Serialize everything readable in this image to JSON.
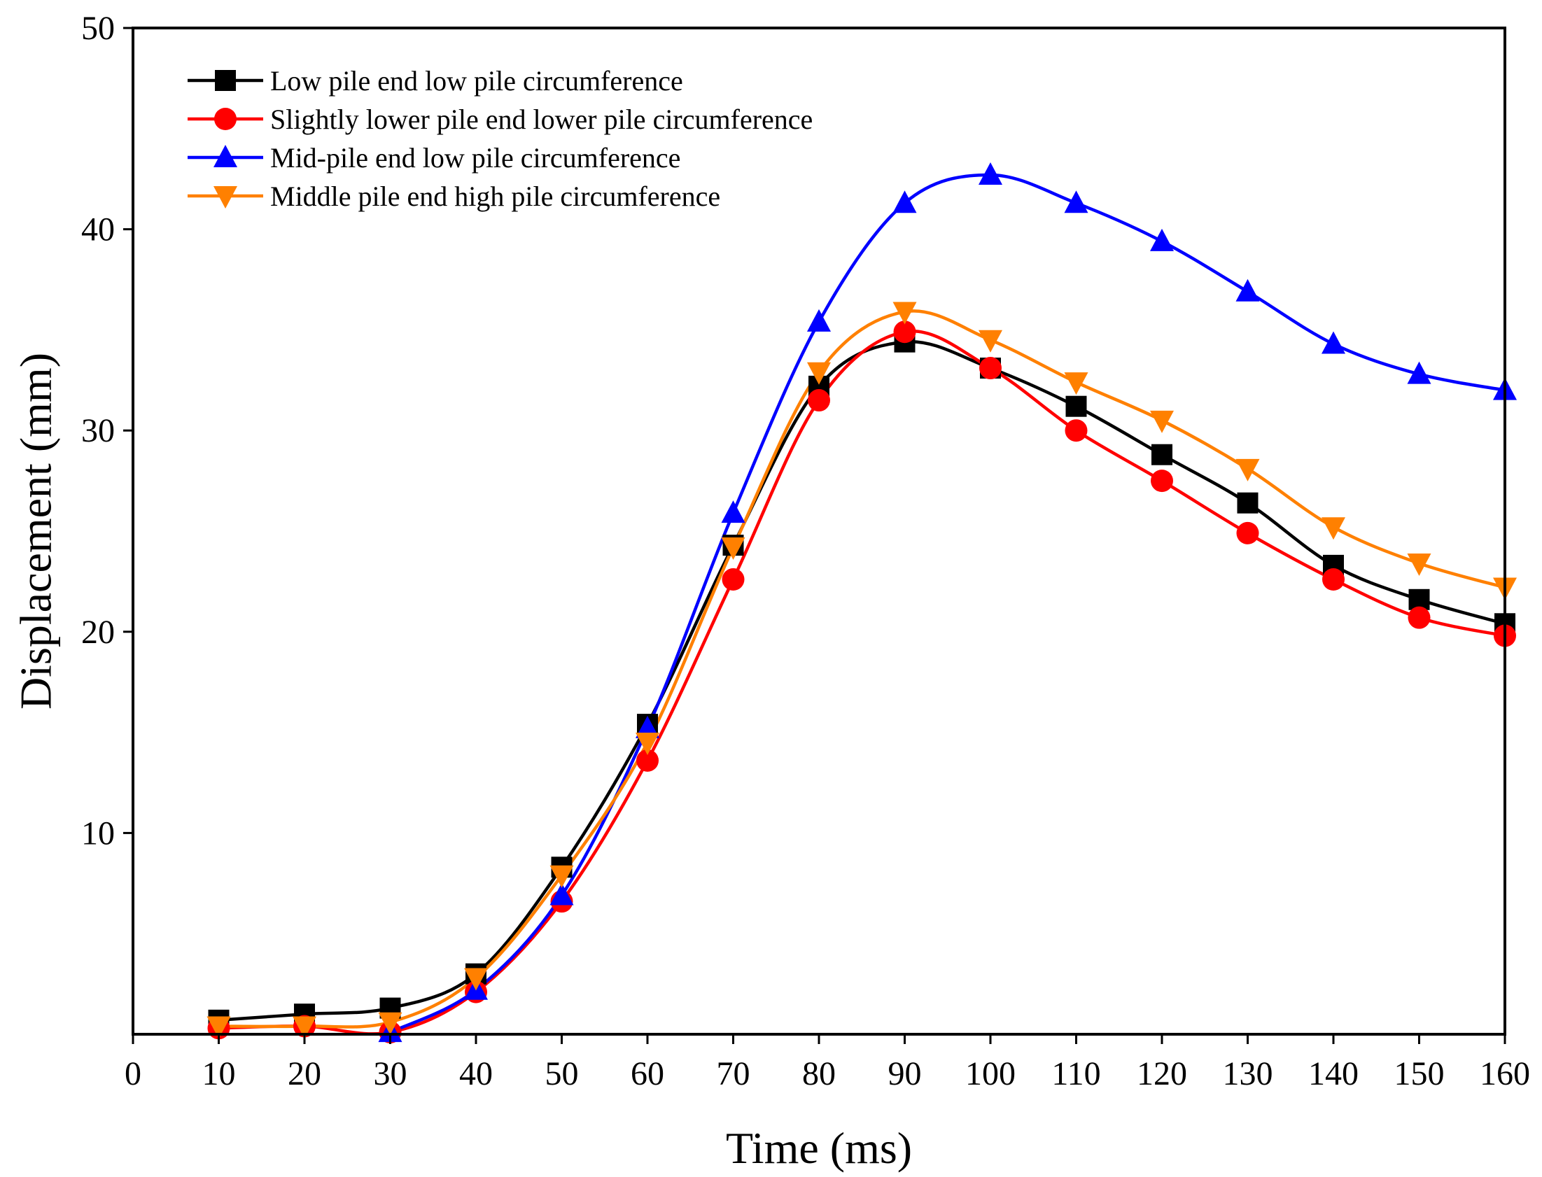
{
  "chart_data": {
    "type": "line",
    "title": "",
    "xlabel": "Time (ms)",
    "ylabel": "Displacement (mm)",
    "xlim": [
      0,
      160
    ],
    "ylim": [
      0,
      50
    ],
    "x_ticks": [
      0,
      10,
      20,
      30,
      40,
      50,
      60,
      70,
      80,
      90,
      100,
      110,
      120,
      130,
      140,
      150,
      160
    ],
    "y_ticks": [
      10,
      20,
      30,
      40,
      50
    ],
    "grid": false,
    "legend_position": "top-left",
    "x": [
      10,
      20,
      30,
      40,
      50,
      60,
      70,
      80,
      90,
      100,
      110,
      120,
      130,
      140,
      150,
      160
    ],
    "series": [
      {
        "name": "Low pile end low pile circumference",
        "color": "#000000",
        "marker": "square",
        "values": [
          0.7,
          1.0,
          1.3,
          3.0,
          8.3,
          15.4,
          24.3,
          32.2,
          34.4,
          33.1,
          31.2,
          28.8,
          26.4,
          23.3,
          21.6,
          20.4
        ]
      },
      {
        "name": "Slightly lower pile end lower pile circumference",
        "color": "#ff0000",
        "marker": "circle",
        "values": [
          0.3,
          0.4,
          0.1,
          2.1,
          6.6,
          13.6,
          22.6,
          31.5,
          34.9,
          33.1,
          30.0,
          27.5,
          24.9,
          22.6,
          20.7,
          19.8
        ]
      },
      {
        "name": "Mid-pile end low pile circumference",
        "color": "#0000ff",
        "marker": "triangle-up",
        "values": [
          null,
          null,
          0.1,
          2.2,
          6.9,
          15.2,
          25.9,
          35.4,
          41.3,
          42.7,
          41.3,
          39.4,
          36.9,
          34.3,
          32.8,
          32.0
        ]
      },
      {
        "name": "Middle pile end high pile circumference",
        "color": "#ff8000",
        "marker": "triangle-down",
        "values": [
          0.4,
          0.4,
          0.6,
          2.8,
          7.9,
          14.5,
          24.2,
          32.9,
          35.9,
          34.5,
          32.4,
          30.5,
          28.1,
          25.2,
          23.4,
          22.2
        ]
      }
    ]
  }
}
